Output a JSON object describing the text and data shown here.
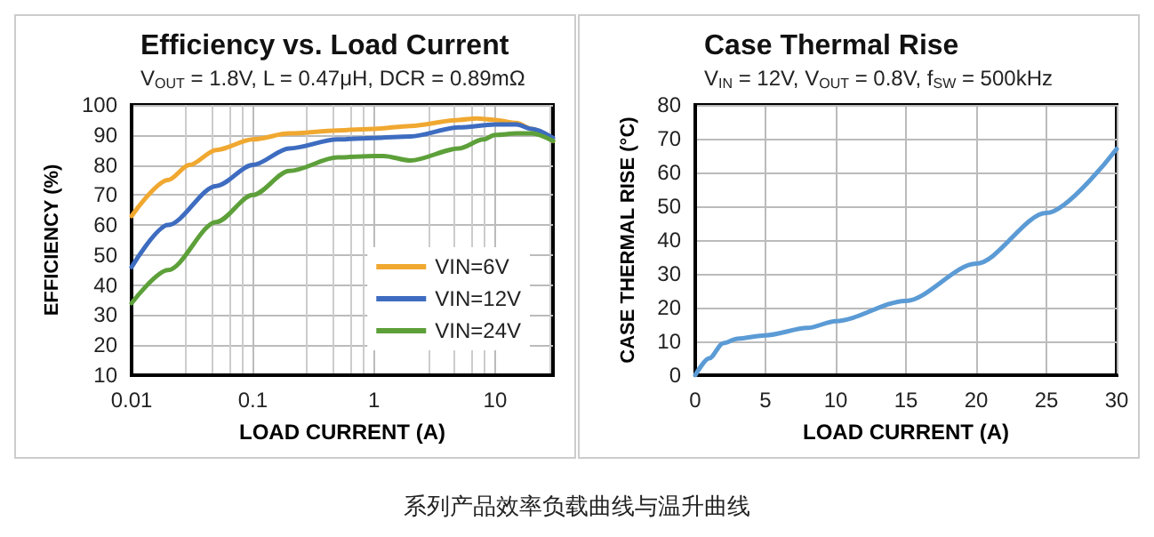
{
  "chart_data": [
    {
      "type": "line",
      "title": "Efficiency vs. Load Current",
      "subtitle": "V$_{OUT}$ = 1.8V, L = 0.47μH, DCR = 0.89mΩ",
      "xlabel": "LOAD CURRENT (A)",
      "ylabel": "EFFICIENCY (%)",
      "log": "x",
      "xlim": [
        0.01,
        30
      ],
      "xticks": [
        0.01,
        0.1,
        1,
        10
      ],
      "ylim": [
        10,
        100
      ],
      "yticks": [
        10,
        20,
        30,
        40,
        50,
        60,
        70,
        80,
        90,
        100
      ],
      "grid": true,
      "legend": "bottom right",
      "marker": "none",
      "line_style": "solid",
      "series": [
        {
          "name": "VIN=6V",
          "color": "#f0a830",
          "x": [
            0.01,
            0.02,
            0.03,
            0.05,
            0.1,
            0.2,
            0.5,
            1,
            2,
            5,
            7,
            10,
            15,
            20,
            30
          ],
          "values": [
            63,
            75,
            80,
            85,
            88.5,
            90.5,
            91.5,
            92,
            93,
            95,
            95.5,
            95,
            94,
            92,
            88
          ]
        },
        {
          "name": "VIN=12V",
          "color": "#3d6cc0",
          "x": [
            0.01,
            0.02,
            0.05,
            0.1,
            0.2,
            0.5,
            1,
            2,
            5,
            10,
            15,
            20,
            30
          ],
          "values": [
            46,
            60,
            73,
            80,
            85.5,
            88.5,
            89,
            89.5,
            92.5,
            93.5,
            93.5,
            92,
            89
          ]
        },
        {
          "name": "VIN=24V",
          "color": "#5da03a",
          "x": [
            0.01,
            0.02,
            0.05,
            0.1,
            0.2,
            0.5,
            1,
            1.2,
            2,
            5,
            8,
            10,
            15,
            20,
            30
          ],
          "values": [
            34,
            45,
            61,
            70,
            78,
            82.5,
            83,
            83,
            81.5,
            85.5,
            88.5,
            90,
            90.5,
            90.5,
            88
          ]
        }
      ],
      "annotations": [
        "系列产品效率负载曲线与温升曲线"
      ]
    },
    {
      "type": "line",
      "title": "Case Thermal Rise",
      "subtitle": "V$_{IN}$ = 12V, V$_{OUT}$ = 0.8V, f$_{SW}$ = 500kHz",
      "xlabel": "LOAD CURRENT (A)",
      "ylabel": "CASE THERMAL RISE (°C)",
      "xlim": [
        0,
        30
      ],
      "xticks": [
        0,
        5,
        10,
        15,
        20,
        25,
        30
      ],
      "ylim": [
        0,
        80
      ],
      "yticks": [
        0,
        10,
        20,
        30,
        40,
        50,
        60,
        70,
        80
      ],
      "grid": true,
      "legend": false,
      "marker": "none",
      "line_style": "solid",
      "series": [
        {
          "color": "#5b9bd5",
          "x": [
            0,
            1,
            2,
            3,
            5,
            8,
            10,
            15,
            20,
            25,
            30
          ],
          "values": [
            0,
            5,
            9.5,
            10.8,
            11.8,
            14,
            16,
            22,
            33,
            48,
            67
          ]
        }
      ]
    }
  ]
}
